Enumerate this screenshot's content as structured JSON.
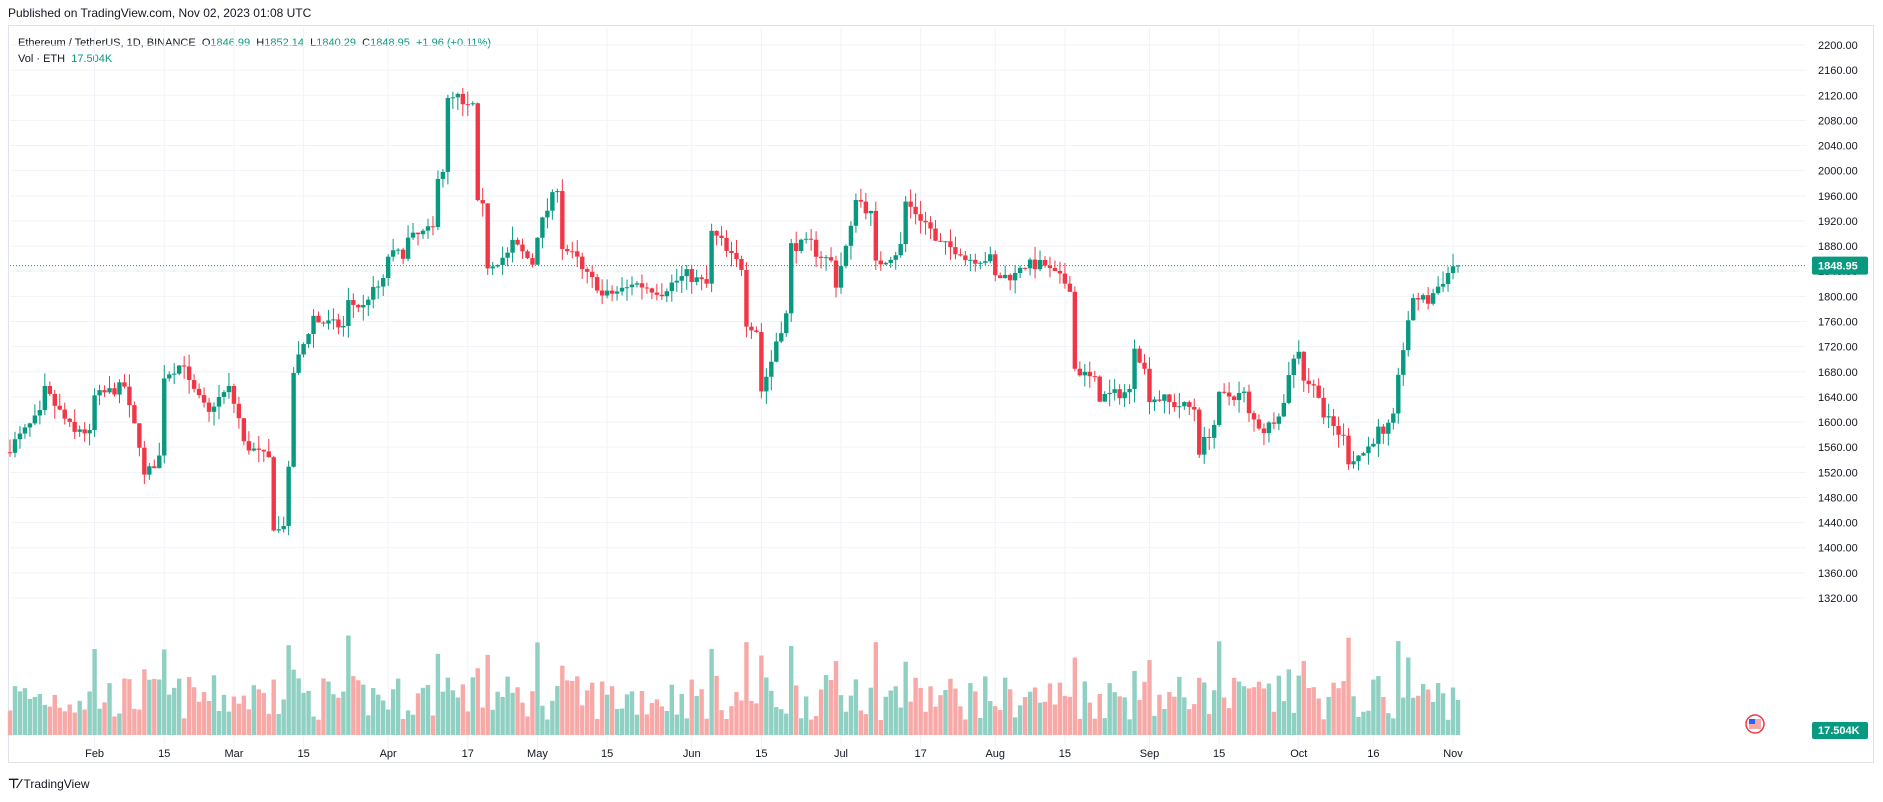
{
  "published": "Published on TradingView.com, Nov 02, 2023 01:08 UTC",
  "legend": {
    "symbol": "Ethereum / TetherUS, 1D, BINANCE",
    "open_label": "O",
    "open": "1846.99",
    "high_label": "H",
    "high": "1852.14",
    "low_label": "L",
    "low": "1840.29",
    "close_label": "C",
    "close": "1848.95",
    "change": "+1.96 (+0.11%)",
    "vol_label": "Vol · ETH",
    "vol_value": "17.504K"
  },
  "footer": {
    "brand": "TradingView"
  },
  "colors": {
    "up": "#089981",
    "down": "#f23645",
    "up_vol": "#8fd0c3",
    "down_vol": "#f7a9a7",
    "grid": "#f0f3fa",
    "axis_text": "#131722"
  },
  "chart_data": {
    "type": "candlestick",
    "pair": "ETH/USDT",
    "interval": "1D",
    "exchange": "BINANCE",
    "ylim": [
      1300,
      2220
    ],
    "y_ticks": [
      1320,
      1360,
      1400,
      1440,
      1480,
      1520,
      1560,
      1600,
      1640,
      1680,
      1720,
      1760,
      1800,
      1840,
      1880,
      1920,
      1960,
      2000,
      2040,
      2080,
      2120,
      2160,
      2200
    ],
    "y_tick_labels": [
      "1320.00",
      "1360.00",
      "1400.00",
      "1440.00",
      "1480.00",
      "1520.00",
      "1560.00",
      "1600.00",
      "1640.00",
      "1680.00",
      "1720.00",
      "1760.00",
      "1800.00",
      "1840.00",
      "1880.00",
      "1920.00",
      "1960.00",
      "2000.00",
      "2040.00",
      "2080.00",
      "2120.00",
      "2160.00",
      "2200.00"
    ],
    "x_ticks": [
      {
        "date": "2023-02-01",
        "label": "Feb"
      },
      {
        "date": "2023-02-15",
        "label": "15"
      },
      {
        "date": "2023-03-01",
        "label": "Mar"
      },
      {
        "date": "2023-03-15",
        "label": "15"
      },
      {
        "date": "2023-04-01",
        "label": "Apr"
      },
      {
        "date": "2023-04-17",
        "label": "17"
      },
      {
        "date": "2023-05-01",
        "label": "May"
      },
      {
        "date": "2023-05-15",
        "label": "15"
      },
      {
        "date": "2023-06-01",
        "label": "Jun"
      },
      {
        "date": "2023-06-15",
        "label": "15"
      },
      {
        "date": "2023-07-01",
        "label": "Jul"
      },
      {
        "date": "2023-07-17",
        "label": "17"
      },
      {
        "date": "2023-08-01",
        "label": "Aug"
      },
      {
        "date": "2023-08-15",
        "label": "15"
      },
      {
        "date": "2023-09-01",
        "label": "Sep"
      },
      {
        "date": "2023-09-15",
        "label": "15"
      },
      {
        "date": "2023-10-01",
        "label": "Oct"
      },
      {
        "date": "2023-10-16",
        "label": "16"
      },
      {
        "date": "2023-11-01",
        "label": "Nov"
      }
    ],
    "price_series": [
      {
        "date": "2023-01-15",
        "o": 1552,
        "c": 1560
      },
      {
        "date": "2023-01-22",
        "o": 1620,
        "c": 1650
      },
      {
        "date": "2023-01-29",
        "o": 1570,
        "c": 1590
      },
      {
        "date": "2023-02-01",
        "o": 1575,
        "c": 1640
      },
      {
        "date": "2023-02-08",
        "o": 1660,
        "c": 1620
      },
      {
        "date": "2023-02-11",
        "o": 1540,
        "c": 1512
      },
      {
        "date": "2023-02-15",
        "o": 1555,
        "c": 1675
      },
      {
        "date": "2023-02-20",
        "o": 1700,
        "c": 1660
      },
      {
        "date": "2023-02-25",
        "o": 1600,
        "c": 1630
      },
      {
        "date": "2023-03-01",
        "o": 1660,
        "c": 1630
      },
      {
        "date": "2023-03-03",
        "o": 1580,
        "c": 1565
      },
      {
        "date": "2023-03-09",
        "o": 1535,
        "c": 1435
      },
      {
        "date": "2023-03-11",
        "o": 1420,
        "c": 1440
      },
      {
        "date": "2023-03-13",
        "o": 1600,
        "c": 1680
      },
      {
        "date": "2023-03-18",
        "o": 1790,
        "c": 1760
      },
      {
        "date": "2023-03-24",
        "o": 1750,
        "c": 1790
      },
      {
        "date": "2023-03-28",
        "o": 1780,
        "c": 1800
      },
      {
        "date": "2023-04-01",
        "o": 1830,
        "c": 1865
      },
      {
        "date": "2023-04-05",
        "o": 1870,
        "c": 1890
      },
      {
        "date": "2023-04-11",
        "o": 1910,
        "c": 1995
      },
      {
        "date": "2023-04-13",
        "o": 2010,
        "c": 2110
      },
      {
        "date": "2023-04-16",
        "o": 2120,
        "c": 2100
      },
      {
        "date": "2023-04-19",
        "o": 2105,
        "c": 1945
      },
      {
        "date": "2023-04-21",
        "o": 1935,
        "c": 1850
      },
      {
        "date": "2023-04-26",
        "o": 1870,
        "c": 1885
      },
      {
        "date": "2023-05-01",
        "o": 1845,
        "c": 1900
      },
      {
        "date": "2023-05-06",
        "o": 1995,
        "c": 1880
      },
      {
        "date": "2023-05-10",
        "o": 1850,
        "c": 1840
      },
      {
        "date": "2023-05-14",
        "o": 1810,
        "c": 1800
      },
      {
        "date": "2023-05-20",
        "o": 1815,
        "c": 1822
      },
      {
        "date": "2023-05-27",
        "o": 1805,
        "c": 1815
      },
      {
        "date": "2023-06-01",
        "o": 1840,
        "c": 1830
      },
      {
        "date": "2023-06-05",
        "o": 1815,
        "c": 1900
      },
      {
        "date": "2023-06-08",
        "o": 1880,
        "c": 1870
      },
      {
        "date": "2023-06-12",
        "o": 1840,
        "c": 1760
      },
      {
        "date": "2023-06-15",
        "o": 1740,
        "c": 1650
      },
      {
        "date": "2023-06-18",
        "o": 1720,
        "c": 1730
      },
      {
        "date": "2023-06-21",
        "o": 1790,
        "c": 1880
      },
      {
        "date": "2023-06-26",
        "o": 1885,
        "c": 1870
      },
      {
        "date": "2023-06-30",
        "o": 1850,
        "c": 1820
      },
      {
        "date": "2023-07-04",
        "o": 1935,
        "c": 1960
      },
      {
        "date": "2023-07-08",
        "o": 1920,
        "c": 1850
      },
      {
        "date": "2023-07-13",
        "o": 1875,
        "c": 1880
      },
      {
        "date": "2023-07-14",
        "o": 2005,
        "c": 1950
      },
      {
        "date": "2023-07-20",
        "o": 1900,
        "c": 1885
      },
      {
        "date": "2023-07-26",
        "o": 1870,
        "c": 1860
      },
      {
        "date": "2023-08-01",
        "o": 1860,
        "c": 1830
      },
      {
        "date": "2023-08-06",
        "o": 1835,
        "c": 1850
      },
      {
        "date": "2023-08-12",
        "o": 1850,
        "c": 1840
      },
      {
        "date": "2023-08-17",
        "o": 1810,
        "c": 1685
      },
      {
        "date": "2023-08-22",
        "o": 1660,
        "c": 1640
      },
      {
        "date": "2023-08-29",
        "o": 1650,
        "c": 1725
      },
      {
        "date": "2023-09-01",
        "o": 1660,
        "c": 1640
      },
      {
        "date": "2023-09-05",
        "o": 1635,
        "c": 1630
      },
      {
        "date": "2023-09-11",
        "o": 1620,
        "c": 1555
      },
      {
        "date": "2023-09-15",
        "o": 1610,
        "c": 1640
      },
      {
        "date": "2023-09-21",
        "o": 1645,
        "c": 1610
      },
      {
        "date": "2023-09-25",
        "o": 1580,
        "c": 1595
      },
      {
        "date": "2023-09-29",
        "o": 1640,
        "c": 1680
      },
      {
        "date": "2023-10-02",
        "o": 1735,
        "c": 1670
      },
      {
        "date": "2023-10-06",
        "o": 1640,
        "c": 1610
      },
      {
        "date": "2023-10-11",
        "o": 1565,
        "c": 1540
      },
      {
        "date": "2023-10-15",
        "o": 1555,
        "c": 1560
      },
      {
        "date": "2023-10-18",
        "o": 1600,
        "c": 1575
      },
      {
        "date": "2023-10-21",
        "o": 1620,
        "c": 1680
      },
      {
        "date": "2023-10-24",
        "o": 1790,
        "c": 1800
      },
      {
        "date": "2023-10-28",
        "o": 1790,
        "c": 1805
      },
      {
        "date": "2023-11-01",
        "o": 1847,
        "c": 1849
      }
    ],
    "last_price": 1848.95,
    "last_price_label": "1848.95",
    "volume_last_label": "17.504K"
  }
}
